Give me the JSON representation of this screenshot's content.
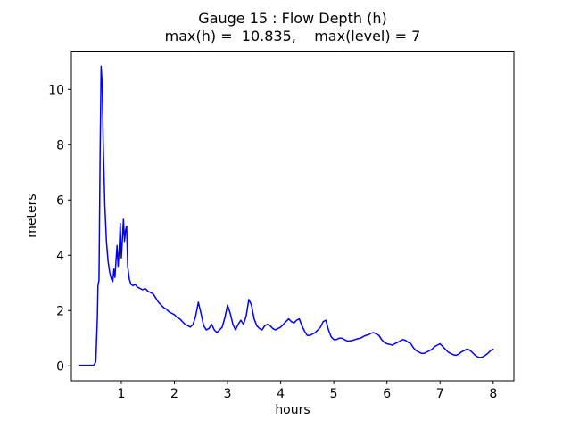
{
  "chart_data": {
    "type": "line",
    "title": "Gauge 15 : Flow Depth (h)",
    "subtitle": "max(h) =  10.835,    max(level) = 7",
    "xlabel": "hours",
    "ylabel": "meters",
    "xlim": [
      0.06,
      8.39
    ],
    "ylim": [
      -0.54,
      11.38
    ],
    "xticks": [
      1,
      2,
      3,
      4,
      5,
      6,
      7,
      8
    ],
    "yticks": [
      0,
      2,
      4,
      6,
      8,
      10
    ],
    "grid": false,
    "legend": "none",
    "line_color": "#0000ff",
    "axis_color": "#000000",
    "max_h": 10.835,
    "max_level": 7,
    "series": [
      {
        "name": "h",
        "x": [
          0.2,
          0.48,
          0.52,
          0.55,
          0.56,
          0.58,
          0.6,
          0.62,
          0.64,
          0.66,
          0.69,
          0.72,
          0.75,
          0.78,
          0.81,
          0.84,
          0.86,
          0.88,
          0.9,
          0.92,
          0.94,
          0.96,
          0.98,
          1.0,
          1.02,
          1.04,
          1.06,
          1.08,
          1.1,
          1.12,
          1.15,
          1.18,
          1.22,
          1.26,
          1.3,
          1.35,
          1.4,
          1.45,
          1.5,
          1.55,
          1.6,
          1.65,
          1.7,
          1.75,
          1.8,
          1.85,
          1.9,
          1.95,
          2.0,
          2.05,
          2.1,
          2.15,
          2.2,
          2.25,
          2.3,
          2.35,
          2.4,
          2.45,
          2.5,
          2.55,
          2.6,
          2.65,
          2.7,
          2.75,
          2.8,
          2.85,
          2.9,
          2.95,
          3.0,
          3.05,
          3.1,
          3.15,
          3.2,
          3.25,
          3.3,
          3.35,
          3.4,
          3.45,
          3.5,
          3.55,
          3.6,
          3.65,
          3.7,
          3.75,
          3.8,
          3.85,
          3.9,
          3.95,
          4.0,
          4.05,
          4.1,
          4.15,
          4.2,
          4.25,
          4.3,
          4.35,
          4.4,
          4.45,
          4.5,
          4.55,
          4.6,
          4.65,
          4.7,
          4.75,
          4.8,
          4.85,
          4.9,
          4.95,
          5.0,
          5.05,
          5.1,
          5.15,
          5.2,
          5.25,
          5.3,
          5.35,
          5.4,
          5.45,
          5.5,
          5.55,
          5.6,
          5.65,
          5.7,
          5.75,
          5.8,
          5.85,
          5.9,
          5.95,
          6.0,
          6.05,
          6.1,
          6.15,
          6.2,
          6.25,
          6.3,
          6.35,
          6.4,
          6.45,
          6.5,
          6.55,
          6.6,
          6.65,
          6.7,
          6.75,
          6.8,
          6.85,
          6.9,
          6.95,
          7.0,
          7.05,
          7.1,
          7.15,
          7.2,
          7.25,
          7.3,
          7.35,
          7.4,
          7.45,
          7.5,
          7.55,
          7.6,
          7.65,
          7.7,
          7.75,
          7.8,
          7.85,
          7.9,
          7.95,
          8.0
        ],
        "y": [
          0.02,
          0.02,
          0.15,
          1.8,
          2.9,
          3.1,
          7.5,
          10.835,
          10.2,
          8.0,
          5.8,
          4.5,
          3.8,
          3.4,
          3.15,
          3.05,
          3.5,
          3.2,
          3.8,
          4.35,
          3.6,
          4.2,
          5.15,
          3.9,
          4.55,
          5.3,
          4.5,
          4.9,
          5.05,
          3.6,
          3.15,
          2.95,
          2.9,
          2.95,
          2.85,
          2.8,
          2.75,
          2.8,
          2.7,
          2.65,
          2.6,
          2.45,
          2.3,
          2.2,
          2.1,
          2.05,
          1.95,
          1.9,
          1.85,
          1.75,
          1.7,
          1.6,
          1.5,
          1.45,
          1.4,
          1.5,
          1.8,
          2.3,
          1.9,
          1.45,
          1.3,
          1.35,
          1.5,
          1.3,
          1.2,
          1.3,
          1.4,
          1.75,
          2.2,
          1.9,
          1.5,
          1.3,
          1.5,
          1.65,
          1.5,
          1.8,
          2.4,
          2.2,
          1.7,
          1.45,
          1.35,
          1.3,
          1.45,
          1.5,
          1.45,
          1.35,
          1.3,
          1.35,
          1.4,
          1.5,
          1.6,
          1.7,
          1.6,
          1.55,
          1.65,
          1.7,
          1.45,
          1.25,
          1.1,
          1.1,
          1.15,
          1.2,
          1.3,
          1.4,
          1.6,
          1.65,
          1.3,
          1.05,
          0.95,
          0.95,
          1.0,
          1.0,
          0.95,
          0.9,
          0.9,
          0.92,
          0.95,
          0.98,
          1.0,
          1.05,
          1.1,
          1.12,
          1.18,
          1.2,
          1.15,
          1.1,
          0.95,
          0.85,
          0.8,
          0.78,
          0.75,
          0.8,
          0.85,
          0.9,
          0.95,
          0.92,
          0.85,
          0.8,
          0.65,
          0.55,
          0.5,
          0.45,
          0.45,
          0.5,
          0.55,
          0.6,
          0.7,
          0.75,
          0.8,
          0.7,
          0.6,
          0.5,
          0.45,
          0.4,
          0.38,
          0.42,
          0.5,
          0.55,
          0.6,
          0.58,
          0.5,
          0.4,
          0.33,
          0.3,
          0.32,
          0.38,
          0.45,
          0.55,
          0.6
        ]
      }
    ]
  }
}
